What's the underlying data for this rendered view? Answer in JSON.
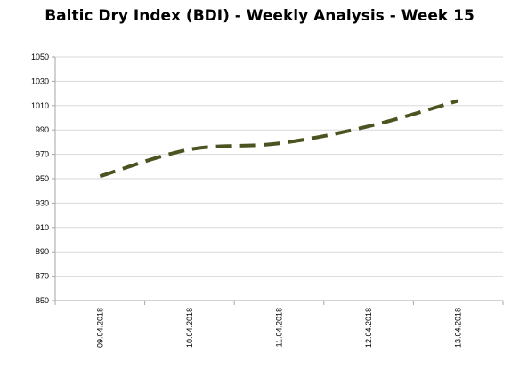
{
  "chart_data": {
    "type": "line",
    "title": "Baltic Dry Index (BDI) - Weekly Analysis - Week 15",
    "xlabel": "",
    "ylabel": "",
    "categories": [
      "09.04.2018",
      "10.04.2018",
      "11.04.2018",
      "12.04.2018",
      "13.04.2018"
    ],
    "series": [
      {
        "values": [
          952,
          974,
          979,
          993,
          1014
        ]
      }
    ],
    "yticks": [
      "850",
      "870",
      "890",
      "910",
      "930",
      "950",
      "970",
      "990",
      "1010",
      "1030",
      "1050"
    ],
    "ylim": [
      850,
      1050
    ],
    "grid": true,
    "legend": "none",
    "colors": {
      "line": "#4b5320",
      "grid": "#d9d9d9",
      "axis": "#a6a6a6"
    }
  }
}
